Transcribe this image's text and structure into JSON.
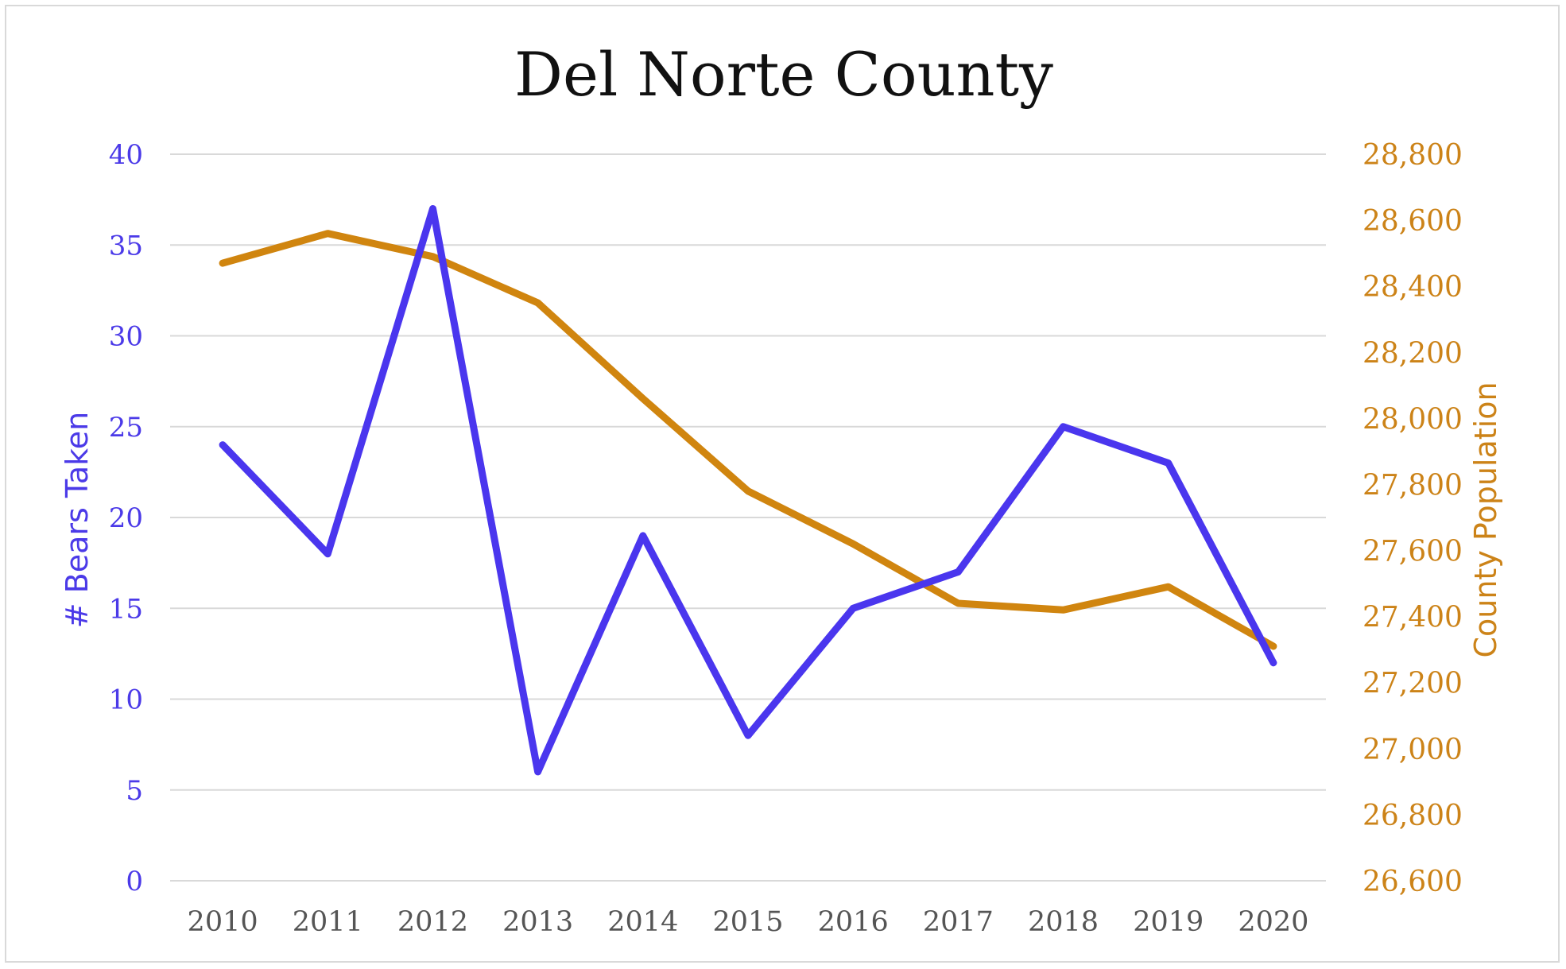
{
  "chart_data": {
    "type": "line",
    "title": "Del Norte County",
    "categories": [
      "2010",
      "2011",
      "2012",
      "2013",
      "2014",
      "2015",
      "2016",
      "2017",
      "2018",
      "2019",
      "2020"
    ],
    "series": [
      {
        "name": "# Bears Taken",
        "axis": "left",
        "color": "#4a36ee",
        "values": [
          24,
          18,
          37,
          6,
          19,
          8,
          15,
          17,
          25,
          23,
          12
        ]
      },
      {
        "name": "County Population",
        "axis": "right",
        "color": "#d0850f",
        "values": [
          28470,
          28560,
          28490,
          28350,
          28060,
          27780,
          27620,
          27440,
          27420,
          27490,
          27310
        ]
      }
    ],
    "ylabel_left": "# Bears Taken",
    "ylabel_right": "County Population",
    "ylim_left": [
      0,
      40
    ],
    "yticks_left": [
      "0",
      "5",
      "10",
      "15",
      "20",
      "25",
      "30",
      "35",
      "40"
    ],
    "ylim_right": [
      26600,
      28800
    ],
    "yticks_right": [
      "26,600",
      "26,800",
      "27,000",
      "27,200",
      "27,400",
      "27,600",
      "27,800",
      "28,000",
      "28,200",
      "28,400",
      "28,600",
      "28,800"
    ],
    "grid": true,
    "legend": "none"
  }
}
